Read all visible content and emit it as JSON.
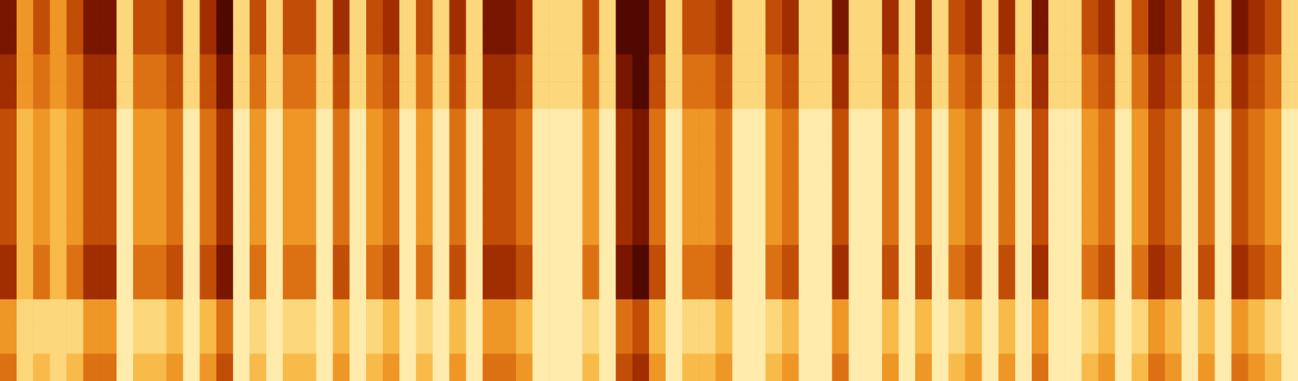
{
  "chart_data": {
    "type": "heatmap",
    "tick_labels": false,
    "zlim": [
      0,
      10
    ],
    "cells": [
      [
        2,
        6,
        4,
        6,
        4,
        2,
        2,
        8,
        4,
        4,
        3,
        8,
        3,
        1,
        8,
        4,
        8,
        4,
        4,
        8,
        3,
        8,
        4,
        3,
        8,
        4,
        8,
        3,
        8,
        2,
        2,
        3,
        8,
        8,
        8,
        4,
        8,
        1,
        1,
        3,
        8,
        4,
        4,
        3,
        8,
        8,
        4,
        3,
        8,
        8,
        2,
        8,
        8,
        3,
        8,
        3,
        8,
        4,
        3,
        8,
        3,
        8,
        2,
        8,
        8,
        4,
        3,
        8,
        4,
        2,
        3,
        8,
        3,
        8,
        2,
        3,
        4,
        8
      ],
      [
        2,
        6,
        4,
        6,
        4,
        2,
        2,
        8,
        4,
        4,
        3,
        8,
        3,
        1,
        8,
        4,
        8,
        4,
        4,
        8,
        3,
        8,
        4,
        3,
        8,
        4,
        8,
        3,
        8,
        2,
        2,
        3,
        8,
        8,
        8,
        4,
        8,
        1,
        1,
        3,
        8,
        4,
        4,
        3,
        8,
        8,
        4,
        3,
        8,
        8,
        2,
        8,
        8,
        3,
        8,
        3,
        8,
        4,
        3,
        8,
        3,
        8,
        2,
        8,
        8,
        4,
        3,
        8,
        4,
        2,
        3,
        8,
        3,
        8,
        2,
        3,
        4,
        8
      ],
      [
        3,
        6,
        5,
        6,
        5,
        3,
        3,
        8,
        5,
        5,
        4,
        8,
        4,
        2,
        8,
        5,
        8,
        5,
        5,
        8,
        4,
        8,
        5,
        4,
        8,
        5,
        8,
        4,
        8,
        3,
        3,
        4,
        8,
        8,
        8,
        5,
        8,
        2,
        1,
        4,
        8,
        5,
        5,
        4,
        8,
        8,
        5,
        4,
        8,
        8,
        3,
        8,
        8,
        4,
        8,
        4,
        8,
        5,
        4,
        8,
        4,
        8,
        3,
        8,
        8,
        5,
        4,
        8,
        5,
        3,
        4,
        8,
        4,
        8,
        3,
        4,
        5,
        8
      ],
      [
        3,
        6,
        5,
        6,
        5,
        3,
        3,
        8,
        5,
        5,
        4,
        8,
        4,
        2,
        8,
        5,
        8,
        5,
        5,
        8,
        4,
        8,
        5,
        4,
        8,
        5,
        8,
        4,
        8,
        3,
        3,
        4,
        8,
        8,
        8,
        5,
        8,
        2,
        1,
        4,
        8,
        5,
        5,
        4,
        8,
        8,
        5,
        4,
        8,
        8,
        3,
        8,
        8,
        4,
        8,
        4,
        8,
        5,
        4,
        8,
        4,
        8,
        3,
        8,
        8,
        5,
        4,
        8,
        5,
        3,
        4,
        8,
        4,
        8,
        3,
        4,
        5,
        8
      ],
      [
        4,
        7,
        6,
        7,
        6,
        4,
        4,
        9,
        6,
        6,
        5,
        9,
        5,
        3,
        9,
        6,
        9,
        6,
        6,
        9,
        5,
        9,
        6,
        5,
        9,
        6,
        9,
        5,
        9,
        4,
        4,
        5,
        9,
        9,
        9,
        6,
        9,
        3,
        2,
        5,
        9,
        6,
        6,
        5,
        9,
        9,
        6,
        5,
        9,
        9,
        4,
        9,
        9,
        5,
        9,
        5,
        9,
        6,
        5,
        9,
        5,
        9,
        4,
        9,
        9,
        6,
        5,
        9,
        6,
        4,
        5,
        9,
        5,
        9,
        4,
        5,
        6,
        9
      ],
      [
        4,
        7,
        6,
        7,
        6,
        4,
        4,
        9,
        6,
        6,
        5,
        9,
        5,
        3,
        9,
        6,
        9,
        6,
        6,
        9,
        5,
        9,
        6,
        5,
        9,
        6,
        9,
        5,
        9,
        4,
        4,
        5,
        9,
        9,
        9,
        6,
        9,
        3,
        2,
        5,
        9,
        6,
        6,
        5,
        9,
        9,
        6,
        5,
        9,
        9,
        4,
        9,
        9,
        5,
        9,
        5,
        9,
        6,
        5,
        9,
        5,
        9,
        4,
        9,
        9,
        6,
        5,
        9,
        6,
        4,
        5,
        9,
        5,
        9,
        4,
        5,
        6,
        9
      ],
      [
        4,
        7,
        6,
        7,
        6,
        4,
        4,
        9,
        6,
        6,
        5,
        9,
        5,
        3,
        9,
        6,
        9,
        6,
        6,
        9,
        5,
        9,
        6,
        5,
        9,
        6,
        9,
        5,
        9,
        4,
        4,
        5,
        9,
        9,
        9,
        6,
        9,
        3,
        2,
        5,
        9,
        6,
        6,
        5,
        9,
        9,
        6,
        5,
        9,
        9,
        4,
        9,
        9,
        5,
        9,
        5,
        9,
        6,
        5,
        9,
        5,
        9,
        4,
        9,
        9,
        6,
        5,
        9,
        6,
        4,
        5,
        9,
        5,
        9,
        4,
        5,
        6,
        9
      ],
      [
        4,
        7,
        6,
        7,
        6,
        4,
        4,
        9,
        6,
        6,
        5,
        9,
        5,
        3,
        9,
        6,
        9,
        6,
        6,
        9,
        5,
        9,
        6,
        5,
        9,
        6,
        9,
        5,
        9,
        4,
        4,
        5,
        9,
        9,
        9,
        6,
        9,
        3,
        2,
        5,
        9,
        6,
        6,
        5,
        9,
        9,
        6,
        5,
        9,
        9,
        4,
        9,
        9,
        5,
        9,
        5,
        9,
        6,
        5,
        9,
        5,
        9,
        4,
        9,
        9,
        6,
        5,
        9,
        6,
        4,
        5,
        9,
        5,
        9,
        4,
        5,
        6,
        9
      ],
      [
        4,
        7,
        6,
        7,
        6,
        4,
        4,
        9,
        6,
        6,
        5,
        9,
        5,
        3,
        9,
        6,
        9,
        6,
        6,
        9,
        5,
        9,
        6,
        5,
        9,
        6,
        9,
        5,
        9,
        4,
        4,
        5,
        9,
        9,
        9,
        6,
        9,
        3,
        2,
        5,
        9,
        6,
        6,
        5,
        9,
        9,
        6,
        5,
        9,
        9,
        4,
        9,
        9,
        5,
        9,
        5,
        9,
        6,
        5,
        9,
        5,
        9,
        4,
        9,
        9,
        6,
        5,
        9,
        6,
        4,
        5,
        9,
        5,
        9,
        4,
        5,
        6,
        9
      ],
      [
        3,
        7,
        5,
        7,
        5,
        3,
        3,
        9,
        5,
        5,
        4,
        9,
        4,
        2,
        9,
        5,
        9,
        5,
        5,
        9,
        4,
        9,
        5,
        4,
        9,
        5,
        9,
        4,
        9,
        3,
        3,
        4,
        9,
        9,
        9,
        5,
        9,
        2,
        1,
        4,
        9,
        5,
        5,
        4,
        9,
        9,
        5,
        4,
        9,
        9,
        3,
        9,
        9,
        4,
        9,
        4,
        9,
        5,
        4,
        9,
        4,
        9,
        3,
        9,
        9,
        5,
        4,
        9,
        5,
        3,
        4,
        9,
        4,
        9,
        3,
        4,
        5,
        9
      ],
      [
        3,
        7,
        5,
        7,
        5,
        3,
        3,
        9,
        5,
        5,
        4,
        9,
        4,
        2,
        9,
        5,
        9,
        5,
        5,
        9,
        4,
        9,
        5,
        4,
        9,
        5,
        9,
        4,
        9,
        3,
        3,
        4,
        9,
        9,
        9,
        5,
        9,
        2,
        1,
        4,
        9,
        5,
        5,
        4,
        9,
        9,
        5,
        4,
        9,
        9,
        3,
        9,
        9,
        4,
        9,
        4,
        9,
        5,
        4,
        9,
        4,
        9,
        3,
        9,
        9,
        5,
        4,
        9,
        5,
        3,
        4,
        9,
        4,
        9,
        3,
        4,
        5,
        9
      ],
      [
        6,
        8,
        8,
        8,
        8,
        6,
        6,
        9,
        8,
        8,
        7,
        9,
        7,
        5,
        9,
        8,
        9,
        8,
        8,
        9,
        7,
        9,
        8,
        7,
        9,
        8,
        9,
        7,
        9,
        6,
        6,
        7,
        9,
        9,
        9,
        8,
        9,
        5,
        4,
        7,
        9,
        8,
        8,
        7,
        9,
        9,
        8,
        7,
        9,
        9,
        6,
        9,
        9,
        7,
        9,
        7,
        9,
        8,
        7,
        9,
        7,
        9,
        6,
        9,
        9,
        8,
        7,
        9,
        8,
        6,
        7,
        9,
        7,
        9,
        6,
        7,
        8,
        9
      ],
      [
        6,
        8,
        8,
        8,
        8,
        6,
        6,
        9,
        8,
        8,
        7,
        9,
        7,
        5,
        9,
        8,
        9,
        8,
        8,
        9,
        7,
        9,
        8,
        7,
        9,
        8,
        9,
        7,
        9,
        6,
        6,
        7,
        9,
        9,
        9,
        8,
        9,
        5,
        4,
        7,
        9,
        8,
        8,
        7,
        9,
        9,
        8,
        7,
        9,
        9,
        6,
        9,
        9,
        7,
        9,
        7,
        9,
        8,
        7,
        9,
        7,
        9,
        6,
        9,
        9,
        8,
        7,
        9,
        8,
        6,
        7,
        9,
        7,
        9,
        6,
        7,
        8,
        9
      ],
      [
        5,
        8,
        7,
        8,
        7,
        5,
        5,
        9,
        7,
        7,
        6,
        9,
        6,
        4,
        9,
        7,
        9,
        7,
        7,
        9,
        6,
        9,
        7,
        6,
        9,
        7,
        9,
        6,
        9,
        5,
        5,
        6,
        9,
        9,
        9,
        7,
        9,
        4,
        3,
        6,
        9,
        7,
        7,
        6,
        9,
        9,
        7,
        6,
        9,
        9,
        5,
        9,
        9,
        6,
        9,
        6,
        9,
        7,
        6,
        9,
        6,
        9,
        5,
        9,
        9,
        7,
        6,
        9,
        7,
        5,
        6,
        9,
        6,
        9,
        5,
        6,
        7,
        9
      ]
    ]
  }
}
